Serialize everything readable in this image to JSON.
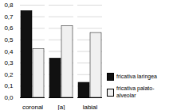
{
  "chart_data": {
    "type": "bar",
    "categories": [
      "coronal",
      "[a]",
      "labial"
    ],
    "series": [
      {
        "name": "fricativa laringea",
        "color": "#111111",
        "values": [
          0.75,
          0.34,
          0.13
        ]
      },
      {
        "name": "fricativa palato-\nalveolar",
        "color": "#f0f0f0",
        "values": [
          0.42,
          0.62,
          0.56
        ]
      }
    ],
    "ylim": [
      0,
      0.8
    ],
    "yticks": [
      {
        "value": 0,
        "label": "0,0"
      },
      {
        "value": 0.1,
        "label": "0,1"
      },
      {
        "value": 0.2,
        "label": "0,2"
      },
      {
        "value": 0.3,
        "label": "0,3"
      },
      {
        "value": 0.4,
        "label": "0,4"
      },
      {
        "value": 0.5,
        "label": "0,5"
      },
      {
        "value": 0.6,
        "label": "0,6"
      },
      {
        "value": 0.7,
        "label": "0,7"
      },
      {
        "value": 0.8,
        "label": "0,8"
      }
    ],
    "grid": true,
    "legend": "right"
  }
}
